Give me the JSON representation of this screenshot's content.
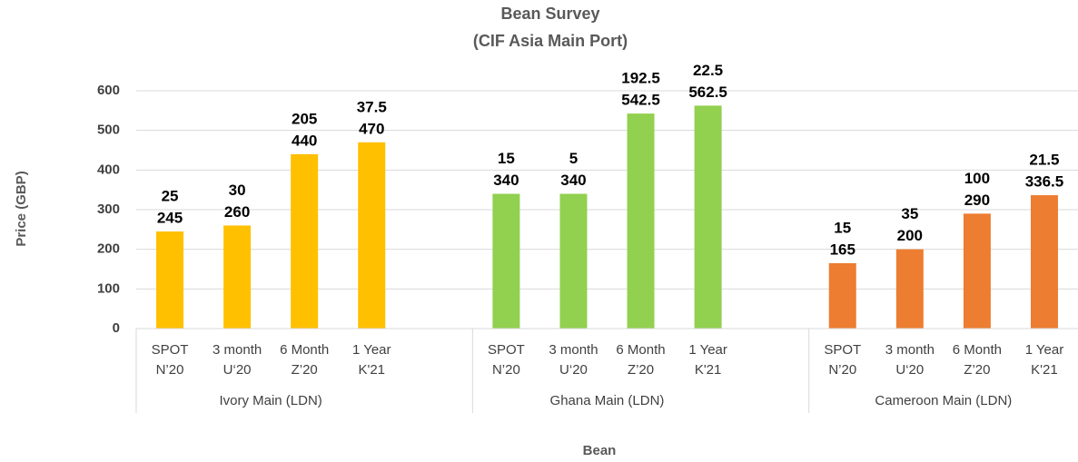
{
  "chart_data": {
    "type": "bar",
    "title": "Bean Survey",
    "subtitle": "(CIF Asia Main Port)",
    "y_label": "Price (GBP)",
    "x_label": "Bean",
    "ylim": [
      0,
      600
    ],
    "yticks": [
      0,
      100,
      200,
      300,
      400,
      500,
      600
    ],
    "grid": true,
    "series": [
      {
        "name": "Ivory Main (LDN)",
        "color": "#ffc000",
        "categories": [
          [
            "SPOT",
            "N’20"
          ],
          [
            "3 month",
            "U‘20"
          ],
          [
            "6 Month",
            "Z’20"
          ],
          [
            "1 Year",
            "K'21"
          ]
        ],
        "values": [
          245,
          260,
          440,
          470
        ],
        "annotations": [
          25,
          30,
          205,
          37.5
        ]
      },
      {
        "name": "Ghana Main (LDN)",
        "color": "#92d050",
        "categories": [
          [
            "SPOT",
            "N’20"
          ],
          [
            "3 month",
            "U‘20"
          ],
          [
            "6 Month",
            "Z’20"
          ],
          [
            "1 Year",
            "K'21"
          ]
        ],
        "values": [
          340,
          340,
          542.5,
          562.5
        ],
        "annotations": [
          15,
          5,
          192.5,
          22.5
        ]
      },
      {
        "name": "Cameroon Main (LDN)",
        "color": "#ed7d31",
        "categories": [
          [
            "SPOT",
            "N’20"
          ],
          [
            "3 month",
            "U‘20"
          ],
          [
            "6 Month",
            "Z’20"
          ],
          [
            "1 Year",
            "K'21"
          ]
        ],
        "values": [
          165,
          200,
          290,
          336.5
        ],
        "annotations": [
          15,
          35,
          100,
          21.5
        ]
      }
    ]
  }
}
